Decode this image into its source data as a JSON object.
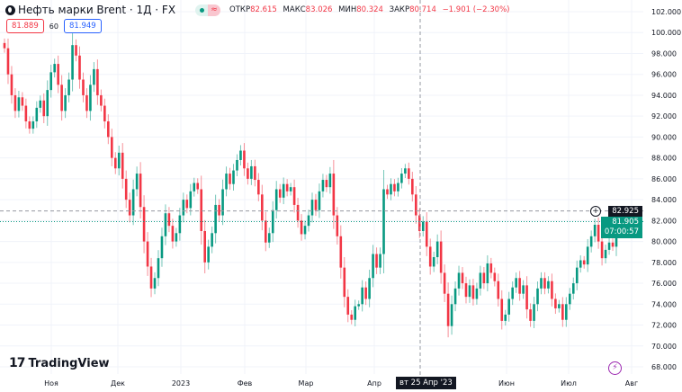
{
  "header": {
    "title": "Нефть марки Brent · 1Д · FX",
    "market_status_icon": "green-dot",
    "badge": "≈",
    "ohlc": [
      {
        "label": "ОТКР",
        "value": "82.615"
      },
      {
        "label": "МАКС",
        "value": "83.026"
      },
      {
        "label": "МИН",
        "value": "80.324"
      },
      {
        "label": "ЗАКР",
        "value": "80.714"
      }
    ],
    "change": "−1.901 (−2.30%)",
    "sell_price": "81.889",
    "spread": "60",
    "buy_price": "81.949"
  },
  "brand": "TradingView",
  "price_labels": {
    "crosshair_price": "82.925",
    "last_price": "81.905",
    "countdown": "07:00:57"
  },
  "crosshair_date": "вт 25 Апр '23",
  "colors": {
    "up": "#089981",
    "down": "#f23645",
    "grid": "#f0f3fa",
    "crosshair": "#9598a1"
  },
  "chart_data": {
    "type": "candlestick",
    "title": "",
    "ylim": [
      68,
      102
    ],
    "y_ticks": [
      "102.000",
      "100.000",
      "98.000",
      "96.000",
      "94.000",
      "92.000",
      "90.000",
      "88.000",
      "86.000",
      "84.000",
      "82.000",
      "80.000",
      "78.000",
      "76.000",
      "74.000",
      "72.000",
      "70.000",
      "68.000"
    ],
    "x_ticks": [
      "Ноя",
      "Дек",
      "2023",
      "Фев",
      "Мар",
      "Апр",
      "Июн",
      "Июл",
      "Авг"
    ],
    "grid": true,
    "close": [
      98.5,
      96.0,
      94.0,
      92.5,
      93.8,
      93.0,
      91.5,
      90.8,
      91.5,
      92.8,
      93.5,
      92.0,
      94.5,
      96.2,
      97.0,
      95.0,
      92.5,
      94.0,
      95.5,
      98.8,
      97.8,
      95.5,
      94.0,
      92.5,
      95.0,
      96.5,
      94.0,
      93.0,
      91.5,
      90.0,
      88.0,
      87.0,
      88.5,
      86.0,
      84.0,
      82.5,
      85.0,
      86.5,
      83.3,
      80.0,
      77.6,
      75.5,
      76.5,
      78.4,
      80.5,
      82.7,
      81.5,
      80.0,
      80.8,
      82.5,
      84.0,
      83.2,
      84.8,
      85.6,
      85.0,
      81.0,
      78.0,
      79.5,
      80.8,
      83.5,
      82.5,
      85.0,
      86.5,
      85.5,
      86.8,
      87.8,
      88.7,
      87.0,
      86.0,
      87.2,
      85.9,
      84.5,
      82.0,
      79.9,
      80.8,
      83.0,
      85.0,
      84.2,
      85.5,
      84.8,
      85.2,
      83.5,
      82.0,
      80.7,
      81.5,
      82.5,
      84.0,
      83.0,
      84.8,
      85.9,
      85.2,
      86.5,
      82.5,
      80.5,
      77.5,
      74.7,
      73.0,
      72.5,
      73.8,
      74.0,
      75.6,
      74.5,
      76.5,
      78.8,
      77.5,
      78.8,
      85.0,
      84.5,
      85.5,
      84.8,
      85.6,
      86.5,
      87.0,
      86.0,
      84.5,
      82.5,
      81.0,
      81.9,
      79.5,
      77.6,
      78.5,
      80.0,
      77.0,
      75.0,
      71.9,
      74.0,
      75.5,
      77.0,
      76.0,
      74.7,
      75.8,
      74.5,
      75.5,
      77.0,
      76.0,
      77.9,
      77.0,
      76.2,
      74.5,
      72.4,
      73.0,
      74.5,
      75.6,
      76.5,
      75.0,
      75.8,
      73.5,
      72.4,
      74.0,
      75.5,
      76.5,
      75.5,
      76.2,
      74.5,
      73.6,
      74.0,
      72.5,
      74.0,
      75.0,
      76.0,
      77.5,
      78.2,
      77.8,
      79.5,
      80.5,
      81.6,
      80.0,
      78.4,
      79.2,
      79.9,
      79.5,
      81.905
    ],
    "reference_lines": [
      82.925,
      81.905
    ]
  }
}
